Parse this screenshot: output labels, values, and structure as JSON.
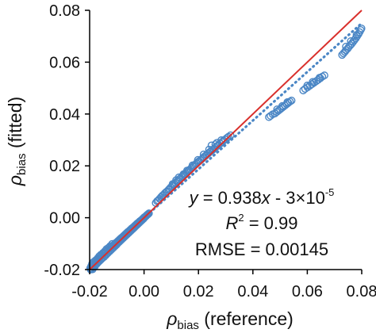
{
  "chart_data": {
    "type": "scatter",
    "title": "",
    "xlabel": {
      "symbol": "ρ",
      "sub": "bias",
      "text": " (reference)"
    },
    "ylabel": {
      "symbol": "ρ",
      "sub": "bias",
      "text": " (fitted)"
    },
    "xlim": [
      -0.02,
      0.08
    ],
    "ylim": [
      -0.02,
      0.08
    ],
    "x_ticks": [
      "-0.02",
      "0.00",
      "0.02",
      "0.04",
      "0.06",
      "0.08"
    ],
    "y_ticks": [
      "-0.02",
      "0.00",
      "0.02",
      "0.04",
      "0.06",
      "0.08"
    ],
    "grid": false,
    "legend": "none",
    "colors": {
      "points": "#4a86c5",
      "identity_line": "#d9302c",
      "trend_line": "#4a86c5",
      "axes": "#000000"
    },
    "identity_line": {
      "from": [
        -0.02,
        -0.02
      ],
      "to": [
        0.08,
        0.08
      ],
      "style": "solid"
    },
    "trend_line": {
      "slope": 0.938,
      "intercept": -3e-05,
      "from_x": -0.02,
      "to_x": 0.08,
      "style": "dotted"
    },
    "annotations": {
      "line1": {
        "a": "y",
        "b": " = 0.938",
        "c": "x",
        "d": " - 3×10",
        "sup": "-5"
      },
      "line2": {
        "a": "R",
        "sup": "2",
        "b": " = 0.99"
      },
      "line3": "RMSE = 0.00145"
    },
    "series": [
      {
        "points": [
          [
            -0.0198,
            -0.0195
          ],
          [
            -0.0195,
            -0.0188
          ],
          [
            -0.0192,
            -0.0196
          ],
          [
            -0.019,
            -0.0182
          ],
          [
            -0.0188,
            -0.0191
          ],
          [
            -0.0185,
            -0.0178
          ],
          [
            -0.0183,
            -0.0186
          ],
          [
            -0.018,
            -0.0173
          ],
          [
            -0.0178,
            -0.0182
          ],
          [
            -0.0175,
            -0.0168
          ],
          [
            -0.0173,
            -0.0177
          ],
          [
            -0.017,
            -0.0163
          ],
          [
            -0.0168,
            -0.0171
          ],
          [
            -0.0165,
            -0.0158
          ],
          [
            -0.0163,
            -0.0166
          ],
          [
            -0.016,
            -0.0152
          ],
          [
            -0.0158,
            -0.0161
          ],
          [
            -0.0155,
            -0.0147
          ],
          [
            -0.0153,
            -0.0156
          ],
          [
            -0.015,
            -0.0142
          ],
          [
            -0.0147,
            -0.0151
          ],
          [
            -0.0145,
            -0.0137
          ],
          [
            -0.0142,
            -0.0146
          ],
          [
            -0.014,
            -0.0132
          ],
          [
            -0.0137,
            -0.014
          ],
          [
            -0.0135,
            -0.0128
          ],
          [
            -0.0132,
            -0.0135
          ],
          [
            -0.013,
            -0.0122
          ],
          [
            -0.0127,
            -0.013
          ],
          [
            -0.0125,
            -0.0118
          ],
          [
            -0.0122,
            -0.0125
          ],
          [
            -0.012,
            -0.0113
          ],
          [
            -0.0117,
            -0.012
          ],
          [
            -0.0115,
            -0.0108
          ],
          [
            -0.0112,
            -0.0115
          ],
          [
            -0.011,
            -0.0103
          ],
          [
            -0.0107,
            -0.011
          ],
          [
            -0.0105,
            -0.0098
          ],
          [
            -0.0102,
            -0.0105
          ],
          [
            -0.01,
            -0.0094
          ],
          [
            -0.0097,
            -0.0099
          ],
          [
            -0.0095,
            -0.0089
          ],
          [
            -0.0092,
            -0.0094
          ],
          [
            -0.009,
            -0.0084
          ],
          [
            -0.0087,
            -0.0089
          ],
          [
            -0.0085,
            -0.0079
          ],
          [
            -0.0082,
            -0.0084
          ],
          [
            -0.008,
            -0.0075
          ],
          [
            -0.0077,
            -0.0079
          ],
          [
            -0.0075,
            -0.007
          ],
          [
            -0.0072,
            -0.0074
          ],
          [
            -0.007,
            -0.0065
          ],
          [
            -0.0067,
            -0.0069
          ],
          [
            -0.0065,
            -0.006
          ],
          [
            -0.0062,
            -0.0064
          ],
          [
            -0.006,
            -0.0055
          ],
          [
            -0.0057,
            -0.0059
          ],
          [
            -0.0055,
            -0.0051
          ],
          [
            -0.0052,
            -0.0054
          ],
          [
            -0.005,
            -0.0046
          ],
          [
            -0.0047,
            -0.0049
          ],
          [
            -0.0045,
            -0.0041
          ],
          [
            -0.0042,
            -0.0044
          ],
          [
            -0.004,
            -0.0037
          ],
          [
            -0.0037,
            -0.0039
          ],
          [
            -0.0035,
            -0.0032
          ],
          [
            -0.0032,
            -0.0034
          ],
          [
            -0.003,
            -0.0027
          ],
          [
            -0.0027,
            -0.0029
          ],
          [
            -0.0025,
            -0.0022
          ],
          [
            -0.0022,
            -0.0024
          ],
          [
            -0.002,
            -0.0018
          ],
          [
            -0.0017,
            -0.0019
          ],
          [
            -0.0015,
            -0.0013
          ],
          [
            -0.0012,
            -0.0014
          ],
          [
            -0.001,
            -0.0009
          ],
          [
            -0.0007,
            -0.0009
          ],
          [
            -0.0005,
            -0.0004
          ],
          [
            -0.0002,
            -0.0004
          ],
          [
            0.0,
            0.0001
          ],
          [
            0.0003,
            0.0002
          ],
          [
            0.0005,
            0.0005
          ],
          [
            0.0008,
            0.0007
          ],
          [
            0.001,
            0.001
          ],
          [
            0.0013,
            0.0012
          ],
          [
            0.0015,
            0.0014
          ],
          [
            0.0018,
            0.0017
          ],
          [
            -0.0191,
            -0.0178
          ],
          [
            -0.0186,
            -0.0171
          ],
          [
            -0.0179,
            -0.0165
          ],
          [
            -0.0171,
            -0.0157
          ],
          [
            -0.0165,
            -0.0149
          ],
          [
            -0.0159,
            -0.0143
          ],
          [
            -0.0151,
            -0.0136
          ],
          [
            -0.0144,
            -0.0129
          ],
          [
            -0.0138,
            -0.0121
          ],
          [
            -0.0131,
            -0.0116
          ],
          [
            -0.0124,
            -0.0109
          ],
          [
            -0.0117,
            -0.0101
          ],
          [
            -0.0196,
            -0.02
          ],
          [
            -0.0189,
            -0.0199
          ],
          [
            -0.0181,
            -0.0188
          ],
          [
            0.0043,
            0.0057
          ],
          [
            0.0048,
            0.0064
          ],
          [
            0.0052,
            0.0067
          ],
          [
            0.0057,
            0.0073
          ],
          [
            0.0062,
            0.0079
          ],
          [
            0.0067,
            0.0085
          ],
          [
            0.0071,
            0.0088
          ],
          [
            0.0076,
            0.0094
          ],
          [
            0.0081,
            0.0099
          ],
          [
            0.0085,
            0.0102
          ],
          [
            0.009,
            0.0108
          ],
          [
            0.0094,
            0.0112
          ],
          [
            0.0098,
            0.0117
          ],
          [
            0.0103,
            0.0122
          ],
          [
            0.0108,
            0.0127
          ],
          [
            0.0112,
            0.013
          ],
          [
            0.0116,
            0.0135
          ],
          [
            0.0121,
            0.014
          ],
          [
            0.0125,
            0.0143
          ],
          [
            0.0129,
            0.0148
          ],
          [
            0.0134,
            0.0152
          ],
          [
            0.0138,
            0.0157
          ],
          [
            0.0143,
            0.0161
          ],
          [
            0.0147,
            0.0165
          ],
          [
            0.0152,
            0.017
          ],
          [
            0.0157,
            0.0175
          ],
          [
            0.0162,
            0.018
          ],
          [
            0.0166,
            0.0184
          ],
          [
            0.0171,
            0.0188
          ],
          [
            0.0175,
            0.0193
          ],
          [
            0.018,
            0.0197
          ],
          [
            0.0184,
            0.0202
          ],
          [
            0.0189,
            0.0206
          ],
          [
            0.0193,
            0.021
          ],
          [
            0.0198,
            0.0215
          ],
          [
            0.0202,
            0.0218
          ],
          [
            0.0207,
            0.0222
          ],
          [
            0.0212,
            0.0226
          ],
          [
            0.0216,
            0.023
          ],
          [
            0.022,
            0.0234
          ],
          [
            0.0225,
            0.0238
          ],
          [
            0.023,
            0.0243
          ],
          [
            0.0236,
            0.0248
          ],
          [
            0.0241,
            0.0253
          ],
          [
            0.0246,
            0.0257
          ],
          [
            0.0251,
            0.0261
          ],
          [
            0.0256,
            0.0265
          ],
          [
            0.0262,
            0.0271
          ],
          [
            0.0268,
            0.0276
          ],
          [
            0.0274,
            0.0281
          ],
          [
            0.028,
            0.0286
          ],
          [
            0.0286,
            0.0292
          ],
          [
            0.0292,
            0.0297
          ],
          [
            0.0298,
            0.0302
          ],
          [
            0.0305,
            0.0308
          ],
          [
            0.031,
            0.0312
          ],
          [
            0.0318,
            0.0318
          ],
          [
            0.0105,
            0.013
          ],
          [
            0.0118,
            0.0145
          ],
          [
            0.0128,
            0.0156
          ],
          [
            0.0145,
            0.0168
          ],
          [
            0.0158,
            0.0182
          ],
          [
            0.0178,
            0.0202
          ],
          [
            0.0198,
            0.0223
          ],
          [
            0.0219,
            0.0244
          ],
          [
            0.0239,
            0.0263
          ],
          [
            0.0262,
            0.0283
          ],
          [
            0.0248,
            0.0279
          ],
          [
            0.0268,
            0.0289
          ],
          [
            0.0284,
            0.0299
          ],
          [
            0.0585,
            0.0491
          ],
          [
            0.0592,
            0.0497
          ],
          [
            0.0601,
            0.0503
          ],
          [
            0.0609,
            0.0509
          ],
          [
            0.0617,
            0.0515
          ],
          [
            0.0625,
            0.0521
          ],
          [
            0.0633,
            0.0527
          ],
          [
            0.064,
            0.0532
          ],
          [
            0.0648,
            0.0538
          ],
          [
            0.0655,
            0.0544
          ],
          [
            0.0663,
            0.0549
          ],
          [
            0.06,
            0.051
          ],
          [
            0.062,
            0.0524
          ],
          [
            0.0645,
            0.054
          ],
          [
            0.0488,
            0.0408
          ],
          [
            0.0494,
            0.0413
          ],
          [
            0.05,
            0.0418
          ],
          [
            0.0506,
            0.0423
          ],
          [
            0.0512,
            0.0428
          ],
          [
            0.0518,
            0.0433
          ],
          [
            0.0524,
            0.0438
          ],
          [
            0.053,
            0.0443
          ],
          [
            0.0536,
            0.0448
          ],
          [
            0.0542,
            0.0452
          ],
          [
            0.0489,
            0.0418
          ],
          [
            0.0508,
            0.0431
          ],
          [
            0.0527,
            0.0446
          ],
          [
            0.0459,
            0.0388
          ],
          [
            0.0465,
            0.0393
          ],
          [
            0.0473,
            0.0399
          ],
          [
            0.0481,
            0.0402
          ],
          [
            0.0728,
            0.0628
          ],
          [
            0.0733,
            0.0634
          ],
          [
            0.0738,
            0.064
          ],
          [
            0.0742,
            0.0646
          ],
          [
            0.0748,
            0.0652
          ],
          [
            0.0752,
            0.0658
          ],
          [
            0.0758,
            0.0665
          ],
          [
            0.0763,
            0.0671
          ],
          [
            0.0768,
            0.0678
          ],
          [
            0.0773,
            0.0685
          ],
          [
            0.0778,
            0.0692
          ],
          [
            0.0783,
            0.07
          ],
          [
            0.0788,
            0.0708
          ],
          [
            0.0792,
            0.0716
          ],
          [
            0.0796,
            0.0724
          ],
          [
            0.0799,
            0.073
          ],
          [
            0.0742,
            0.066
          ],
          [
            0.076,
            0.0681
          ],
          [
            0.0781,
            0.0705
          ]
        ]
      }
    ]
  }
}
